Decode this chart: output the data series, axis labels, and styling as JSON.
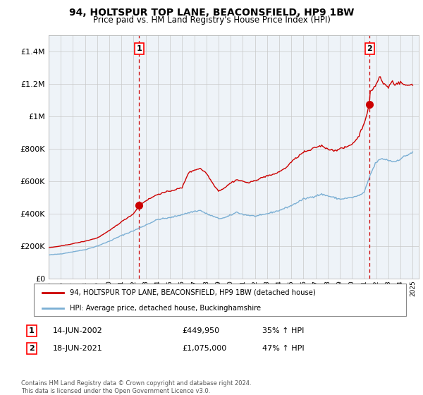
{
  "title": "94, HOLTSPUR TOP LANE, BEACONSFIELD, HP9 1BW",
  "subtitle": "Price paid vs. HM Land Registry's House Price Index (HPI)",
  "legend_line1": "94, HOLTSPUR TOP LANE, BEACONSFIELD, HP9 1BW (detached house)",
  "legend_line2": "HPI: Average price, detached house, Buckinghamshire",
  "footer": "Contains HM Land Registry data © Crown copyright and database right 2024.\nThis data is licensed under the Open Government Licence v3.0.",
  "annotation1": {
    "label": "1",
    "date": "14-JUN-2002",
    "price": "£449,950",
    "change": "35% ↑ HPI"
  },
  "annotation2": {
    "label": "2",
    "date": "18-JUN-2021",
    "price": "£1,075,000",
    "change": "47% ↑ HPI"
  },
  "sale1_x": 2002.45,
  "sale1_y": 449950,
  "sale2_x": 2021.45,
  "sale2_y": 1075000,
  "hpi_color": "#7bafd4",
  "price_color": "#cc0000",
  "background_color": "#ffffff",
  "plot_bg_color": "#eef3f8",
  "grid_color": "#c8c8c8",
  "ylim": [
    0,
    1500000
  ],
  "xlim_start": 1995.0,
  "xlim_end": 2025.5,
  "yticks": [
    0,
    200000,
    400000,
    600000,
    800000,
    1000000,
    1200000,
    1400000
  ],
  "xticks": [
    1995,
    1996,
    1997,
    1998,
    1999,
    2000,
    2001,
    2002,
    2003,
    2004,
    2005,
    2006,
    2007,
    2008,
    2009,
    2010,
    2011,
    2012,
    2013,
    2014,
    2015,
    2016,
    2017,
    2018,
    2019,
    2020,
    2021,
    2022,
    2023,
    2024,
    2025
  ]
}
